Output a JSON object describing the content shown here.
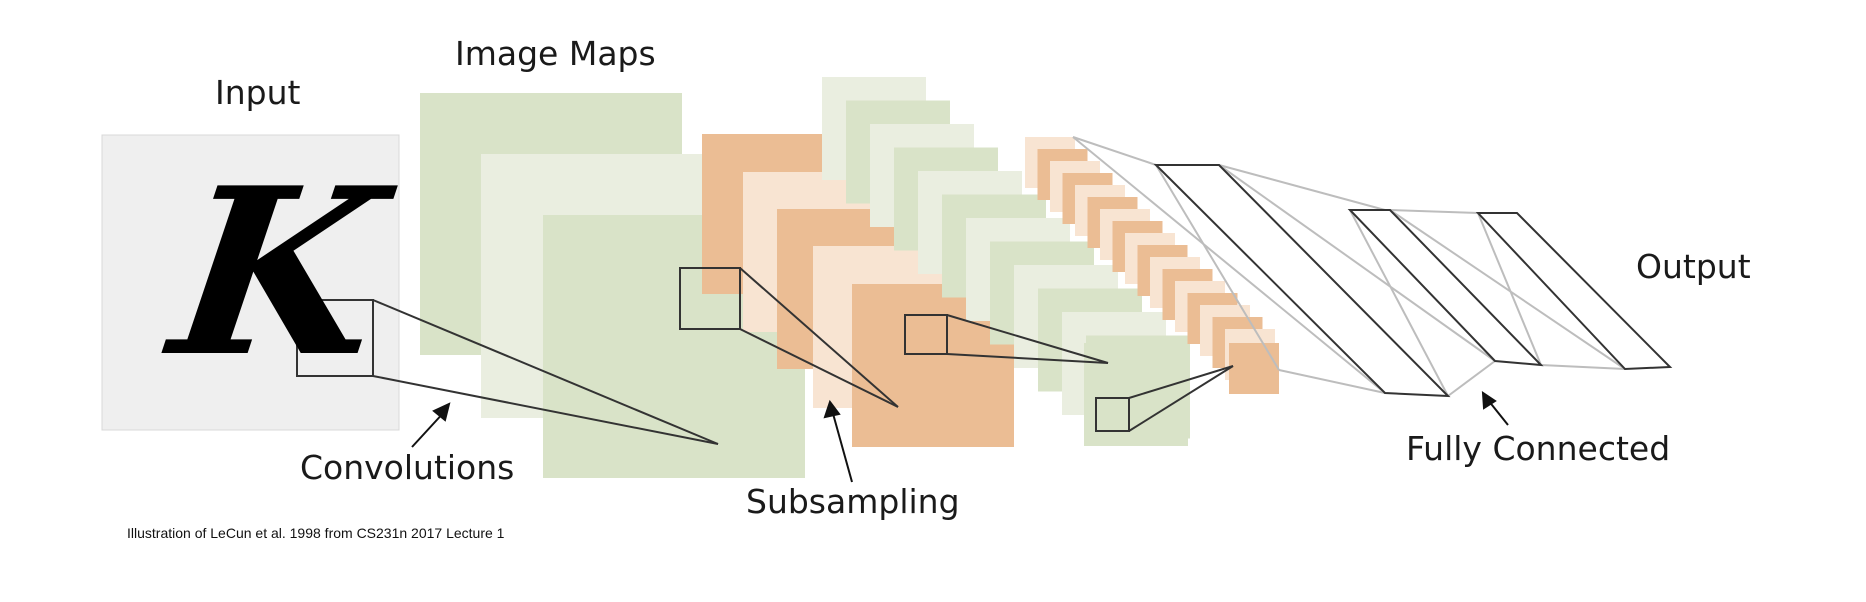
{
  "labels": {
    "input": "Input",
    "image_maps": "Image Maps",
    "output": "Output",
    "convolutions": "Convolutions",
    "subsampling": "Subsampling",
    "fully_connected": "Fully Connected"
  },
  "input_glyph": "K",
  "caption": "Illustration of LeCun et al. 1998 from CS231n 2017 Lecture 1",
  "colors": {
    "input_bg": "#efefef",
    "conv_dark": "#d9e3c8",
    "conv_light": "#eaeee0",
    "sub_dark": "#ebbd94",
    "sub_light": "#f8e4d2",
    "outline": "#333333",
    "fc_line": "#bdbdbd"
  }
}
